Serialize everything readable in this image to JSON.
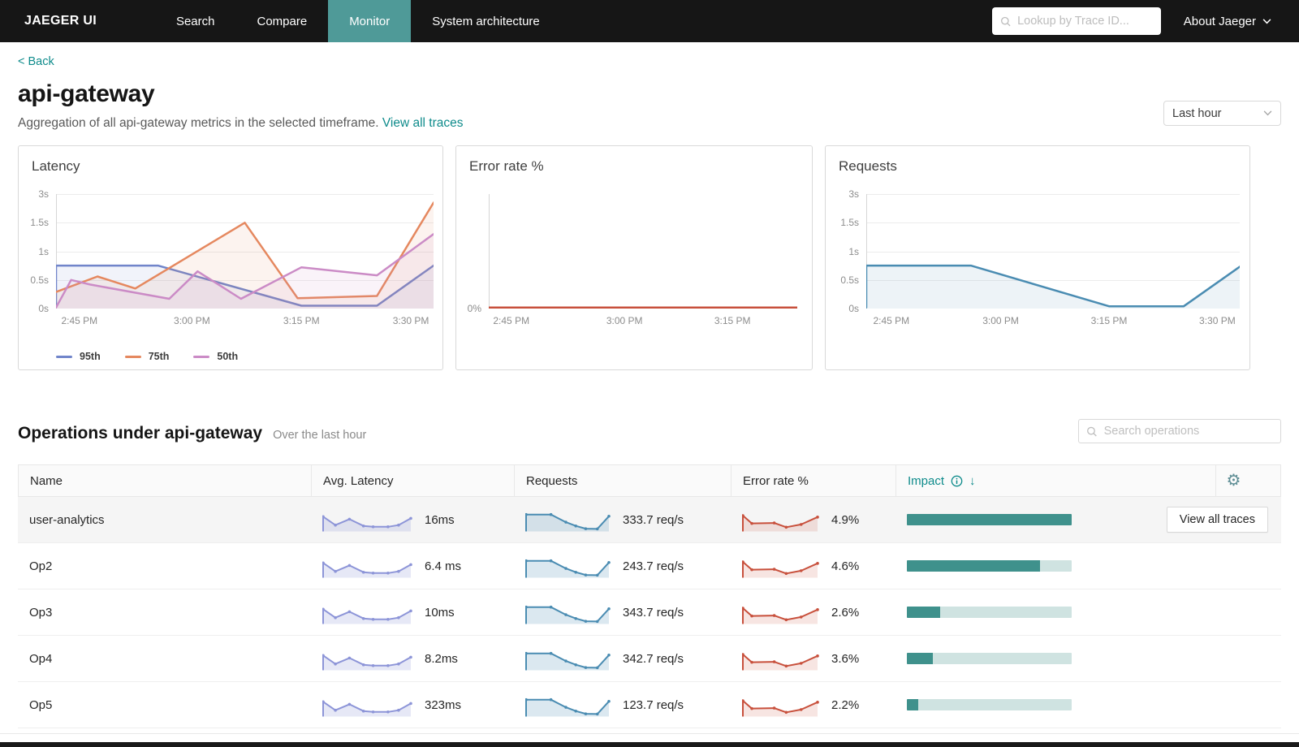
{
  "navbar": {
    "brand": "JAEGER UI",
    "items": [
      {
        "label": "Search",
        "active": false
      },
      {
        "label": "Compare",
        "active": false
      },
      {
        "label": "Monitor",
        "active": true
      },
      {
        "label": "System architecture",
        "active": false
      }
    ],
    "trace_lookup_placeholder": "Lookup by Trace ID...",
    "about_label": "About Jaeger"
  },
  "header": {
    "back_label": "< Back",
    "title": "api-gateway",
    "subtitle": "Aggregation of all api-gateway metrics in the selected timeframe.",
    "view_all_traces_label": "View all traces",
    "timeframe_selected": "Last hour"
  },
  "chart_data": [
    {
      "type": "area",
      "title": "Latency",
      "unit": "seconds",
      "yticks": [
        {
          "label": "0s",
          "v": 0
        },
        {
          "label": "0.5s",
          "v": 0.5
        },
        {
          "label": "1s",
          "v": 1
        },
        {
          "label": "1.5s",
          "v": 1.5
        },
        {
          "label": "3s",
          "v": 3
        }
      ],
      "xticks": [
        {
          "label": "2:45 PM",
          "f": 0.062
        },
        {
          "label": "3:00 PM",
          "f": 0.36
        },
        {
          "label": "3:15 PM",
          "f": 0.65
        },
        {
          "label": "3:30 PM",
          "f": 0.94
        }
      ],
      "legend_position": "bottom",
      "series": [
        {
          "name": "95th",
          "color": "#7185ca",
          "baseline_start": true,
          "points": [
            [
              0,
              0.75
            ],
            [
              0.27,
              0.75
            ],
            [
              0.65,
              0.05
            ],
            [
              0.85,
              0.05
            ],
            [
              1,
              0.75
            ]
          ]
        },
        {
          "name": "75th",
          "color": "#e5885f",
          "points": [
            [
              0,
              0.29
            ],
            [
              0.11,
              0.56
            ],
            [
              0.21,
              0.35
            ],
            [
              0.5,
              1.5
            ],
            [
              0.64,
              0.18
            ],
            [
              0.85,
              0.22
            ],
            [
              1,
              2.55
            ]
          ]
        },
        {
          "name": "50th",
          "color": "#cb8bc6",
          "points": [
            [
              0,
              0
            ],
            [
              0.04,
              0.5
            ],
            [
              0.09,
              0.42
            ],
            [
              0.3,
              0.17
            ],
            [
              0.375,
              0.65
            ],
            [
              0.49,
              0.17
            ],
            [
              0.65,
              0.72
            ],
            [
              0.85,
              0.58
            ],
            [
              1,
              1.3
            ]
          ]
        }
      ]
    },
    {
      "type": "line",
      "title": "Error rate %",
      "unit": "percent",
      "yticks": [
        {
          "label": "0%",
          "v": 0
        }
      ],
      "xticks": [
        {
          "label": "2:45 PM",
          "f": 0.073
        },
        {
          "label": "3:00 PM",
          "f": 0.44
        },
        {
          "label": "3:15 PM",
          "f": 0.79
        }
      ],
      "series": [
        {
          "name": "error-rate",
          "color": "#c8503c",
          "points": [
            [
              0,
              0
            ],
            [
              1,
              0
            ]
          ]
        }
      ]
    },
    {
      "type": "area",
      "title": "Requests",
      "unit": "seconds",
      "yticks": [
        {
          "label": "0s",
          "v": 0
        },
        {
          "label": "0.5s",
          "v": 0.5
        },
        {
          "label": "1s",
          "v": 1
        },
        {
          "label": "1.5s",
          "v": 1.5
        },
        {
          "label": "3s",
          "v": 3
        }
      ],
      "xticks": [
        {
          "label": "2:45 PM",
          "f": 0.067
        },
        {
          "label": "3:00 PM",
          "f": 0.36
        },
        {
          "label": "3:15 PM",
          "f": 0.65
        },
        {
          "label": "3:30 PM",
          "f": 0.94
        }
      ],
      "series": [
        {
          "name": "requests",
          "color": "#4a8cb2",
          "baseline_start": true,
          "points": [
            [
              0,
              0.75
            ],
            [
              0.28,
              0.75
            ],
            [
              0.65,
              0.04
            ],
            [
              0.85,
              0.04
            ],
            [
              1,
              0.73
            ]
          ]
        }
      ]
    }
  ],
  "operations": {
    "title": "Operations under api-gateway",
    "subtitle": "Over the last hour",
    "search_placeholder": "Search operations",
    "columns": [
      "Name",
      "Avg. Latency",
      "Requests",
      "Error rate %",
      "Impact"
    ],
    "rows": [
      {
        "name": "user-analytics",
        "avg_latency": "16ms",
        "requests": "333.7 req/s",
        "error_rate": "4.9%",
        "impact": 1.0,
        "action_label": "View all traces",
        "highlighted": true
      },
      {
        "name": "Op2",
        "avg_latency": "6.4 ms",
        "requests": "243.7 req/s",
        "error_rate": "4.6%",
        "impact": 0.81
      },
      {
        "name": "Op3",
        "avg_latency": "10ms",
        "requests": "343.7 req/s",
        "error_rate": "2.6%",
        "impact": 0.2
      },
      {
        "name": "Op4",
        "avg_latency": "8.2ms",
        "requests": "342.7 req/s",
        "error_rate": "3.6%",
        "impact": 0.16
      },
      {
        "name": "Op5",
        "avg_latency": "323ms",
        "requests": "123.7 req/s",
        "error_rate": "2.2%",
        "impact": 0.07
      }
    ]
  },
  "sparklines": {
    "latency": {
      "color": "#8d95d8",
      "points": [
        [
          0,
          0
        ],
        [
          0,
          0.7
        ],
        [
          0.14,
          0.3
        ],
        [
          0.3,
          0.58
        ],
        [
          0.46,
          0.26
        ],
        [
          0.57,
          0.22
        ],
        [
          0.74,
          0.22
        ],
        [
          0.86,
          0.3
        ],
        [
          1,
          0.62
        ]
      ]
    },
    "requests": {
      "color": "#4a8cb2",
      "points": [
        [
          0,
          0
        ],
        [
          0,
          0.8
        ],
        [
          0.3,
          0.8
        ],
        [
          0.48,
          0.44
        ],
        [
          0.6,
          0.26
        ],
        [
          0.72,
          0.13
        ],
        [
          0.86,
          0.12
        ],
        [
          1,
          0.72
        ]
      ]
    },
    "error": {
      "color": "#c8503c",
      "points": [
        [
          0,
          0
        ],
        [
          0,
          0.75
        ],
        [
          0.12,
          0.38
        ],
        [
          0.42,
          0.4
        ],
        [
          0.58,
          0.2
        ],
        [
          0.78,
          0.33
        ],
        [
          1,
          0.68
        ]
      ]
    }
  },
  "colors": {
    "accent_teal": "#0e8b8b",
    "nav_active_bg": "#4f9a98",
    "impact_fill": "#3f918c",
    "impact_track": "#cfe3e1",
    "error_red": "#c8503c"
  },
  "icons": {
    "trace_lookup": "search-icon",
    "about": "chevron-down-icon",
    "timeframe": "chevron-down-icon",
    "operations_search": "search-icon",
    "impact_info": "info-circle-icon",
    "impact_sort": "arrow-down-icon",
    "table_settings": "gear-icon"
  }
}
